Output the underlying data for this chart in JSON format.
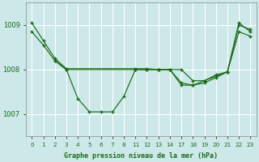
{
  "background_color": "#cce8e8",
  "grid_color": "#b0d8d8",
  "line_color": "#1a6b1a",
  "title": "Graphe pression niveau de la mer (hPa)",
  "ylim": [
    1006.5,
    1009.5
  ],
  "yticks": [
    1007,
    1008,
    1009
  ],
  "xlim": [
    -0.5,
    19.5
  ],
  "xtick_positions": [
    0,
    1,
    2,
    3,
    4,
    5,
    6,
    7,
    8,
    9,
    10,
    11,
    12,
    13,
    14,
    15,
    16,
    17,
    18,
    19
  ],
  "xtick_labels": [
    "0",
    "1",
    "2",
    "3",
    "4",
    "5",
    "6",
    "7",
    "8",
    "11",
    "12",
    "13",
    "14",
    "17",
    "18",
    "19",
    "20",
    "21",
    "22",
    "23"
  ],
  "series": [
    {
      "x": [
        0,
        1,
        2,
        3,
        9,
        10,
        11,
        12,
        13,
        14,
        15,
        16,
        17,
        18,
        19
      ],
      "y": [
        1009.05,
        1008.65,
        1008.25,
        1008.02,
        1008.02,
        1008.02,
        1008.0,
        1008.0,
        1008.0,
        1007.75,
        1007.75,
        1007.85,
        1007.95,
        1009.05,
        1008.85
      ]
    },
    {
      "x": [
        0,
        1,
        2,
        3,
        4,
        5,
        6,
        7,
        8,
        9,
        10,
        11,
        12,
        13,
        14,
        15,
        16,
        17,
        18,
        19
      ],
      "y": [
        1008.85,
        1008.55,
        1008.2,
        1008.0,
        1007.35,
        1007.05,
        1007.05,
        1007.05,
        1007.4,
        1008.0,
        1008.0,
        1008.0,
        1008.0,
        1007.65,
        1007.65,
        1007.75,
        1007.88,
        1007.95,
        1008.85,
        1008.75
      ]
    },
    {
      "x": [
        2,
        3,
        9,
        10,
        11,
        12,
        13,
        14,
        15,
        16,
        17,
        18,
        19
      ],
      "y": [
        1008.2,
        1008.0,
        1008.0,
        1008.0,
        1008.0,
        1008.0,
        1007.7,
        1007.65,
        1007.7,
        1007.82,
        1007.95,
        1009.0,
        1008.9
      ]
    }
  ]
}
